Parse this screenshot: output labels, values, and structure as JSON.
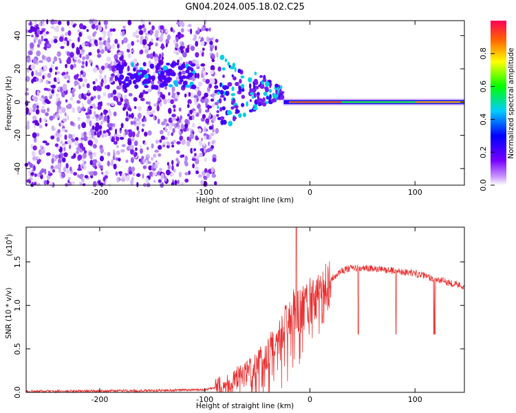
{
  "page_title": "GN04.2024.005.18.02.C25",
  "chart_data": [
    {
      "type": "heatmap",
      "name": "spectrogram",
      "title": "GN04.2024.005.18.02.C25",
      "xlabel": "Height of straight line (km)",
      "ylabel": "Frequency (Hz)",
      "xlim": [
        -270,
        147
      ],
      "ylim": [
        -50,
        49
      ],
      "xticks": [
        "-200",
        "-100",
        "0",
        "100"
      ],
      "xtick_values": [
        -200,
        -100,
        0,
        100
      ],
      "yticks": [
        "40",
        "20",
        "0",
        "-20",
        "-40"
      ],
      "ytick_values": [
        40,
        20,
        0,
        -20,
        -40
      ],
      "noise_region_km": [
        -270,
        -88
      ],
      "scatter_region_km": [
        -88,
        -25
      ],
      "signal_band_km": [
        -25,
        147
      ],
      "colorbar": {
        "label": "Normalized spectral amplitude",
        "range": [
          0.0,
          1.0
        ],
        "ticks": [
          "0.0",
          "0.2",
          "0.4",
          "0.6",
          "0.8"
        ],
        "tick_values": [
          0.0,
          0.2,
          0.4,
          0.6,
          0.8
        ]
      }
    },
    {
      "type": "line",
      "name": "snr",
      "xlabel": "Height of straight line (km)",
      "ylabel": "SNR (10 * v/v)",
      "scale_label": "(x10",
      "scale_exponent": "4",
      "xlim": [
        -270,
        147
      ],
      "ylim": [
        0,
        1.9
      ],
      "xticks": [
        "-200",
        "-100",
        "0",
        "100"
      ],
      "xtick_values": [
        -200,
        -100,
        0,
        100
      ],
      "yticks": [
        "0.0",
        "0.5",
        "1.0",
        "1.5"
      ],
      "ytick_values": [
        0.0,
        0.5,
        1.0,
        1.5
      ],
      "color": "#e83030",
      "envelope": {
        "x": [
          -270,
          -150,
          -100,
          -90,
          -75,
          -60,
          -50,
          -40,
          -30,
          -25,
          -20,
          -15,
          -10,
          -5,
          0,
          10,
          20,
          30,
          40,
          60,
          80,
          100,
          120,
          147
        ],
        "y": [
          0.01,
          0.02,
          0.03,
          0.05,
          0.1,
          0.2,
          0.28,
          0.45,
          0.6,
          0.75,
          0.85,
          0.95,
          0.9,
          1.0,
          1.05,
          1.15,
          1.3,
          1.4,
          1.43,
          1.42,
          1.4,
          1.37,
          1.3,
          1.22
        ]
      },
      "dips_km": [
        46,
        82,
        118,
        119
      ],
      "spike": {
        "x": -13,
        "y": 1.9
      }
    }
  ]
}
